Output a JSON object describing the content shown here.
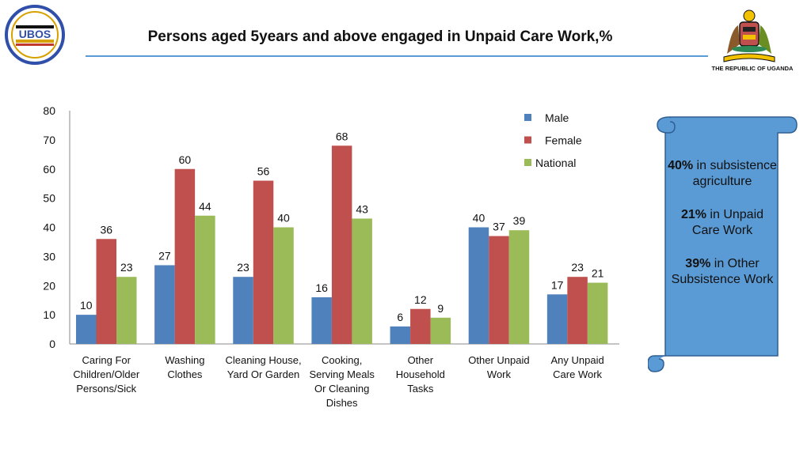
{
  "header": {
    "title": "Persons aged 5years and above engaged in Unpaid Care Work,%",
    "logo_left_text": "UBOS",
    "republic_label": "THE REPUBLIC OF UGANDA"
  },
  "colors": {
    "male": "#4f81bd",
    "female": "#c0504d",
    "national": "#9bbb59",
    "accent": "#5b9bd5",
    "scroll": "#5b9bd5"
  },
  "chart_data": {
    "type": "bar",
    "categories": [
      [
        "Caring For",
        "Children/Older",
        "Persons/Sick"
      ],
      [
        "Washing",
        "Clothes"
      ],
      [
        "Cleaning House,",
        "Yard Or Garden"
      ],
      [
        "Cooking,",
        "Serving Meals",
        "Or Cleaning",
        "Dishes"
      ],
      [
        "Other",
        "Household",
        "Tasks"
      ],
      [
        "Other Unpaid",
        "Work"
      ],
      [
        "Any Unpaid",
        "Care Work"
      ]
    ],
    "series": [
      {
        "name": "Male",
        "values": [
          10,
          27,
          23,
          16,
          6,
          40,
          17
        ]
      },
      {
        "name": "Female",
        "values": [
          36,
          60,
          56,
          68,
          12,
          37,
          23
        ]
      },
      {
        "name": "National",
        "values": [
          23,
          44,
          40,
          43,
          9,
          39,
          21
        ]
      }
    ],
    "ylim": [
      0,
      80
    ],
    "yticks": [
      0,
      10,
      20,
      30,
      40,
      50,
      60,
      70,
      80
    ],
    "legend_position": "top-right",
    "grid": false
  },
  "scroll": {
    "items": [
      {
        "bold": "40%",
        "text": " in subsistence agriculture"
      },
      {
        "bold": "21%",
        "text": " in Unpaid Care Work"
      },
      {
        "bold": "39%",
        "text": " in Other Subsistence Work"
      }
    ]
  }
}
